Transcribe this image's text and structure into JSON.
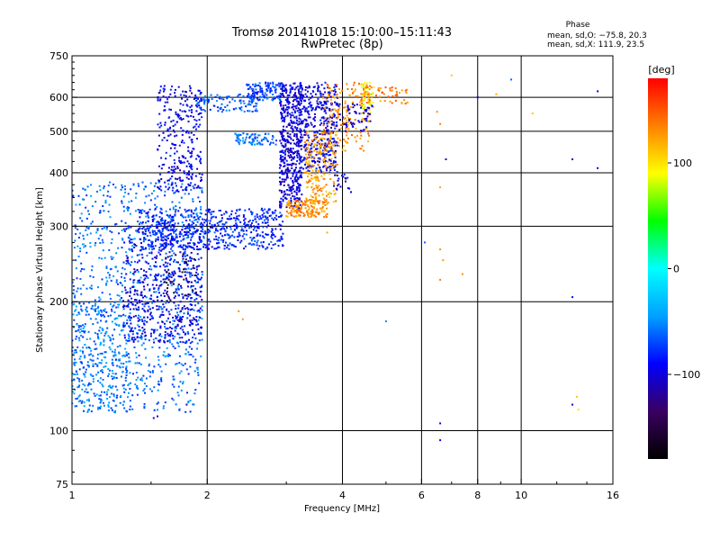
{
  "chart_data": {
    "type": "scatter",
    "title": "Tromsø 20141018 15:10:00–15:11:43",
    "subtitle": "RwPretec (8p)",
    "xlabel": "Frequency [MHz]",
    "ylabel": "Stationary phase Virtual Height [km]",
    "x_scale": "log",
    "y_scale": "log",
    "xlim": [
      1,
      16
    ],
    "ylim": [
      75,
      750
    ],
    "x_ticks": [
      1,
      2,
      4,
      6,
      8,
      10,
      16
    ],
    "x_tick_labels": [
      "1",
      "2",
      "4",
      "6",
      "8",
      "10",
      "16"
    ],
    "y_ticks": [
      75,
      100,
      200,
      300,
      400,
      500,
      600,
      750
    ],
    "y_tick_labels": [
      "75",
      "100",
      "200",
      "300",
      "400",
      "500",
      "600",
      "750"
    ],
    "x_gridlines": [
      2,
      4,
      6,
      8,
      10
    ],
    "y_gridlines": [
      100,
      200,
      300,
      400,
      500,
      600
    ],
    "grid": true,
    "stats_title": "Phase",
    "stats_lines": [
      "mean, sd,O: −75.8, 20.3",
      "mean, sd,X: 111.9, 23.5"
    ],
    "colorbar": {
      "label": "[deg]",
      "range": [
        -180,
        180
      ],
      "ticks": [
        -100,
        0,
        100
      ],
      "tick_labels": [
        "−100",
        "0",
        "100"
      ],
      "colors": [
        "#000000",
        "#3a0060",
        "#0000ff",
        "#00a0ff",
        "#00ffff",
        "#00ff00",
        "#ffff00",
        "#ff8000",
        "#ff0000"
      ]
    },
    "clusters": [
      {
        "x_range": [
          1.0,
          1.95
        ],
        "y_range": [
          110,
          380
        ],
        "phase": -60,
        "count": 900
      },
      {
        "x_range": [
          1.0,
          1.35
        ],
        "y_range": [
          110,
          200
        ],
        "phase": -55,
        "count": 250
      },
      {
        "x_range": [
          1.3,
          1.95
        ],
        "y_range": [
          160,
          300
        ],
        "phase": -95,
        "count": 500
      },
      {
        "x_range": [
          1.4,
          2.95
        ],
        "y_range": [
          265,
          330
        ],
        "phase": -80,
        "count": 600
      },
      {
        "x_range": [
          1.55,
          1.95
        ],
        "y_range": [
          360,
          640
        ],
        "phase": -95,
        "count": 300
      },
      {
        "x_range": [
          1.9,
          2.6
        ],
        "y_range": [
          555,
          610
        ],
        "phase": -65,
        "count": 100
      },
      {
        "x_range": [
          2.45,
          2.95
        ],
        "y_range": [
          590,
          650
        ],
        "phase": -70,
        "count": 130
      },
      {
        "x_range": [
          2.3,
          2.85
        ],
        "y_range": [
          465,
          495
        ],
        "phase": -60,
        "count": 80
      },
      {
        "x_range": [
          2.9,
          3.25
        ],
        "y_range": [
          330,
          650
        ],
        "phase": -100,
        "count": 500
      },
      {
        "x_range": [
          3.2,
          3.9
        ],
        "y_range": [
          400,
          650
        ],
        "phase": -95,
        "count": 400
      },
      {
        "x_range": [
          3.0,
          3.7
        ],
        "y_range": [
          315,
          345
        ],
        "phase": 130,
        "count": 150
      },
      {
        "x_range": [
          3.3,
          3.9
        ],
        "y_range": [
          340,
          500
        ],
        "phase": 125,
        "count": 200
      },
      {
        "x_range": [
          3.6,
          4.6
        ],
        "y_range": [
          450,
          650
        ],
        "phase": 130,
        "count": 150
      },
      {
        "x_range": [
          4.4,
          4.7
        ],
        "y_range": [
          550,
          650
        ],
        "phase": 95,
        "count": 50
      },
      {
        "x_range": [
          4.4,
          5.6
        ],
        "y_range": [
          580,
          640
        ],
        "phase": 135,
        "count": 60
      },
      {
        "x_range": [
          3.9,
          4.7
        ],
        "y_range": [
          500,
          580
        ],
        "phase": -105,
        "count": 60
      },
      {
        "x_range": [
          3.8,
          4.2
        ],
        "y_range": [
          360,
          400
        ],
        "phase": -100,
        "count": 20
      },
      {
        "x_range": [
          1.6,
          1.9
        ],
        "y_range": [
          200,
          260
        ],
        "phase": -150,
        "count": 40
      }
    ],
    "points": [
      {
        "x": 2.35,
        "y": 190,
        "phase": 130
      },
      {
        "x": 2.4,
        "y": 182,
        "phase": 125
      },
      {
        "x": 1.8,
        "y": 115,
        "phase": -105
      },
      {
        "x": 1.55,
        "y": 108,
        "phase": -110
      },
      {
        "x": 1.52,
        "y": 107,
        "phase": -100
      },
      {
        "x": 1.12,
        "y": 122,
        "phase": -70
      },
      {
        "x": 6.6,
        "y": 104,
        "phase": -100
      },
      {
        "x": 6.6,
        "y": 95,
        "phase": -95
      },
      {
        "x": 6.5,
        "y": 555,
        "phase": 130
      },
      {
        "x": 6.6,
        "y": 520,
        "phase": 135
      },
      {
        "x": 6.6,
        "y": 370,
        "phase": 120
      },
      {
        "x": 6.8,
        "y": 430,
        "phase": -100
      },
      {
        "x": 6.6,
        "y": 265,
        "phase": 130
      },
      {
        "x": 6.7,
        "y": 250,
        "phase": 125
      },
      {
        "x": 6.6,
        "y": 225,
        "phase": 135
      },
      {
        "x": 7.4,
        "y": 232,
        "phase": 130
      },
      {
        "x": 5.0,
        "y": 180,
        "phase": -50
      },
      {
        "x": 7.0,
        "y": 675,
        "phase": 110
      },
      {
        "x": 8.0,
        "y": 600,
        "phase": -100
      },
      {
        "x": 8.8,
        "y": 610,
        "phase": 120
      },
      {
        "x": 9.5,
        "y": 660,
        "phase": -60
      },
      {
        "x": 10.6,
        "y": 550,
        "phase": 110
      },
      {
        "x": 13.0,
        "y": 430,
        "phase": -110
      },
      {
        "x": 14.8,
        "y": 410,
        "phase": -100
      },
      {
        "x": 14.8,
        "y": 620,
        "phase": -90
      },
      {
        "x": 13.0,
        "y": 205,
        "phase": -85
      },
      {
        "x": 13.3,
        "y": 120,
        "phase": 110
      },
      {
        "x": 13.0,
        "y": 115,
        "phase": -100
      },
      {
        "x": 13.4,
        "y": 112,
        "phase": 100
      },
      {
        "x": 3.7,
        "y": 290,
        "phase": 120
      },
      {
        "x": 6.1,
        "y": 275,
        "phase": -60
      }
    ]
  }
}
